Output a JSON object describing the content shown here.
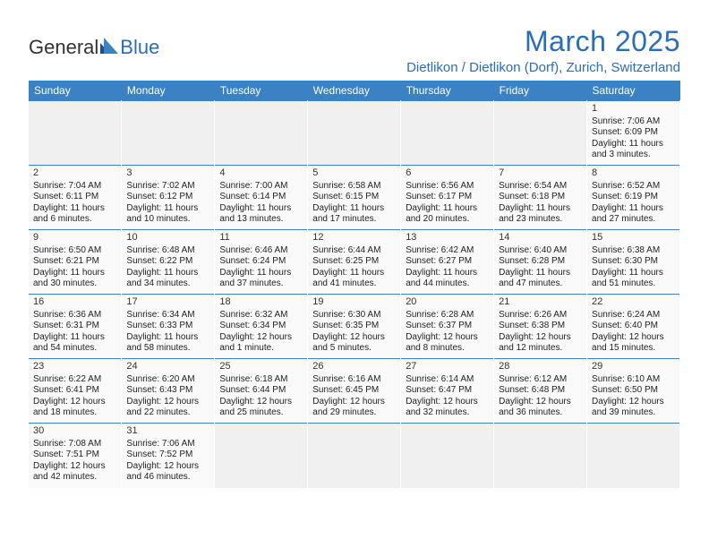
{
  "logo": {
    "part1": "General",
    "part2": "Blue"
  },
  "title": "March 2025",
  "location": "Dietlikon / Dietlikon (Dorf), Zurich, Switzerland",
  "colors": {
    "header_bg": "#3a82c4",
    "accent": "#2a6db8",
    "row_border": "#3a82c4",
    "empty_bg": "#f0f0f0",
    "cell_bg": "#fafafa"
  },
  "dayHeaders": [
    "Sunday",
    "Monday",
    "Tuesday",
    "Wednesday",
    "Thursday",
    "Friday",
    "Saturday"
  ],
  "weeks": [
    [
      null,
      null,
      null,
      null,
      null,
      null,
      {
        "n": "1",
        "sr": "Sunrise: 7:06 AM",
        "ss": "Sunset: 6:09 PM",
        "dl1": "Daylight: 11 hours",
        "dl2": "and 3 minutes."
      }
    ],
    [
      {
        "n": "2",
        "sr": "Sunrise: 7:04 AM",
        "ss": "Sunset: 6:11 PM",
        "dl1": "Daylight: 11 hours",
        "dl2": "and 6 minutes."
      },
      {
        "n": "3",
        "sr": "Sunrise: 7:02 AM",
        "ss": "Sunset: 6:12 PM",
        "dl1": "Daylight: 11 hours",
        "dl2": "and 10 minutes."
      },
      {
        "n": "4",
        "sr": "Sunrise: 7:00 AM",
        "ss": "Sunset: 6:14 PM",
        "dl1": "Daylight: 11 hours",
        "dl2": "and 13 minutes."
      },
      {
        "n": "5",
        "sr": "Sunrise: 6:58 AM",
        "ss": "Sunset: 6:15 PM",
        "dl1": "Daylight: 11 hours",
        "dl2": "and 17 minutes."
      },
      {
        "n": "6",
        "sr": "Sunrise: 6:56 AM",
        "ss": "Sunset: 6:17 PM",
        "dl1": "Daylight: 11 hours",
        "dl2": "and 20 minutes."
      },
      {
        "n": "7",
        "sr": "Sunrise: 6:54 AM",
        "ss": "Sunset: 6:18 PM",
        "dl1": "Daylight: 11 hours",
        "dl2": "and 23 minutes."
      },
      {
        "n": "8",
        "sr": "Sunrise: 6:52 AM",
        "ss": "Sunset: 6:19 PM",
        "dl1": "Daylight: 11 hours",
        "dl2": "and 27 minutes."
      }
    ],
    [
      {
        "n": "9",
        "sr": "Sunrise: 6:50 AM",
        "ss": "Sunset: 6:21 PM",
        "dl1": "Daylight: 11 hours",
        "dl2": "and 30 minutes."
      },
      {
        "n": "10",
        "sr": "Sunrise: 6:48 AM",
        "ss": "Sunset: 6:22 PM",
        "dl1": "Daylight: 11 hours",
        "dl2": "and 34 minutes."
      },
      {
        "n": "11",
        "sr": "Sunrise: 6:46 AM",
        "ss": "Sunset: 6:24 PM",
        "dl1": "Daylight: 11 hours",
        "dl2": "and 37 minutes."
      },
      {
        "n": "12",
        "sr": "Sunrise: 6:44 AM",
        "ss": "Sunset: 6:25 PM",
        "dl1": "Daylight: 11 hours",
        "dl2": "and 41 minutes."
      },
      {
        "n": "13",
        "sr": "Sunrise: 6:42 AM",
        "ss": "Sunset: 6:27 PM",
        "dl1": "Daylight: 11 hours",
        "dl2": "and 44 minutes."
      },
      {
        "n": "14",
        "sr": "Sunrise: 6:40 AM",
        "ss": "Sunset: 6:28 PM",
        "dl1": "Daylight: 11 hours",
        "dl2": "and 47 minutes."
      },
      {
        "n": "15",
        "sr": "Sunrise: 6:38 AM",
        "ss": "Sunset: 6:30 PM",
        "dl1": "Daylight: 11 hours",
        "dl2": "and 51 minutes."
      }
    ],
    [
      {
        "n": "16",
        "sr": "Sunrise: 6:36 AM",
        "ss": "Sunset: 6:31 PM",
        "dl1": "Daylight: 11 hours",
        "dl2": "and 54 minutes."
      },
      {
        "n": "17",
        "sr": "Sunrise: 6:34 AM",
        "ss": "Sunset: 6:33 PM",
        "dl1": "Daylight: 11 hours",
        "dl2": "and 58 minutes."
      },
      {
        "n": "18",
        "sr": "Sunrise: 6:32 AM",
        "ss": "Sunset: 6:34 PM",
        "dl1": "Daylight: 12 hours",
        "dl2": "and 1 minute."
      },
      {
        "n": "19",
        "sr": "Sunrise: 6:30 AM",
        "ss": "Sunset: 6:35 PM",
        "dl1": "Daylight: 12 hours",
        "dl2": "and 5 minutes."
      },
      {
        "n": "20",
        "sr": "Sunrise: 6:28 AM",
        "ss": "Sunset: 6:37 PM",
        "dl1": "Daylight: 12 hours",
        "dl2": "and 8 minutes."
      },
      {
        "n": "21",
        "sr": "Sunrise: 6:26 AM",
        "ss": "Sunset: 6:38 PM",
        "dl1": "Daylight: 12 hours",
        "dl2": "and 12 minutes."
      },
      {
        "n": "22",
        "sr": "Sunrise: 6:24 AM",
        "ss": "Sunset: 6:40 PM",
        "dl1": "Daylight: 12 hours",
        "dl2": "and 15 minutes."
      }
    ],
    [
      {
        "n": "23",
        "sr": "Sunrise: 6:22 AM",
        "ss": "Sunset: 6:41 PM",
        "dl1": "Daylight: 12 hours",
        "dl2": "and 18 minutes."
      },
      {
        "n": "24",
        "sr": "Sunrise: 6:20 AM",
        "ss": "Sunset: 6:43 PM",
        "dl1": "Daylight: 12 hours",
        "dl2": "and 22 minutes."
      },
      {
        "n": "25",
        "sr": "Sunrise: 6:18 AM",
        "ss": "Sunset: 6:44 PM",
        "dl1": "Daylight: 12 hours",
        "dl2": "and 25 minutes."
      },
      {
        "n": "26",
        "sr": "Sunrise: 6:16 AM",
        "ss": "Sunset: 6:45 PM",
        "dl1": "Daylight: 12 hours",
        "dl2": "and 29 minutes."
      },
      {
        "n": "27",
        "sr": "Sunrise: 6:14 AM",
        "ss": "Sunset: 6:47 PM",
        "dl1": "Daylight: 12 hours",
        "dl2": "and 32 minutes."
      },
      {
        "n": "28",
        "sr": "Sunrise: 6:12 AM",
        "ss": "Sunset: 6:48 PM",
        "dl1": "Daylight: 12 hours",
        "dl2": "and 36 minutes."
      },
      {
        "n": "29",
        "sr": "Sunrise: 6:10 AM",
        "ss": "Sunset: 6:50 PM",
        "dl1": "Daylight: 12 hours",
        "dl2": "and 39 minutes."
      }
    ],
    [
      {
        "n": "30",
        "sr": "Sunrise: 7:08 AM",
        "ss": "Sunset: 7:51 PM",
        "dl1": "Daylight: 12 hours",
        "dl2": "and 42 minutes."
      },
      {
        "n": "31",
        "sr": "Sunrise: 7:06 AM",
        "ss": "Sunset: 7:52 PM",
        "dl1": "Daylight: 12 hours",
        "dl2": "and 46 minutes."
      },
      null,
      null,
      null,
      null,
      null
    ]
  ]
}
